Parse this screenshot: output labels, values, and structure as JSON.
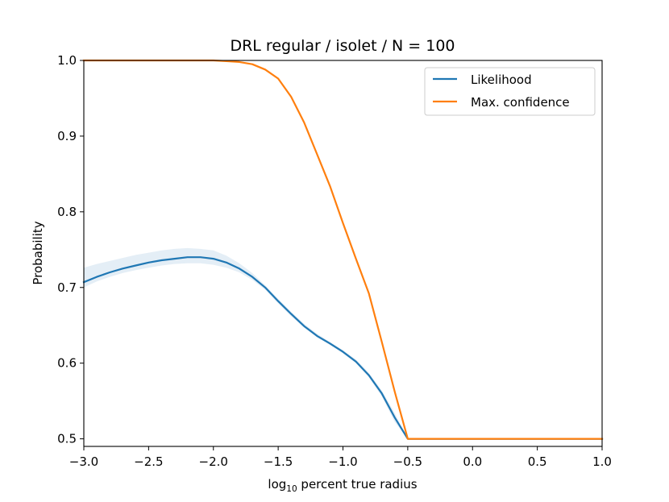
{
  "chart_data": {
    "type": "line",
    "title": "DRL regular / isolet / N = 100",
    "xlabel_main": "log",
    "xlabel_sub": "10",
    "xlabel_rest": " percent true radius",
    "ylabel": "Probability",
    "xlim": [
      -3.0,
      1.0
    ],
    "ylim": [
      0.49,
      1.0
    ],
    "xticks": [
      -3.0,
      -2.5,
      -2.0,
      -1.5,
      -1.0,
      -0.5,
      0.0,
      0.5,
      1.0
    ],
    "xtick_labels": [
      "−3.0",
      "−2.5",
      "−2.0",
      "−1.5",
      "−1.0",
      "−0.5",
      "0.0",
      "0.5",
      "1.0"
    ],
    "yticks": [
      0.5,
      0.6,
      0.7,
      0.8,
      0.9,
      1.0
    ],
    "ytick_labels": [
      "0.5",
      "0.6",
      "0.7",
      "0.8",
      "0.9",
      "1.0"
    ],
    "legend_position": "top-right",
    "series": [
      {
        "name": "Likelihood",
        "color": "#1f77b4",
        "band_color": "#1f77b4",
        "x": [
          -3.0,
          -2.9,
          -2.8,
          -2.7,
          -2.6,
          -2.5,
          -2.4,
          -2.3,
          -2.2,
          -2.1,
          -2.0,
          -1.9,
          -1.8,
          -1.7,
          -1.6,
          -1.5,
          -1.4,
          -1.3,
          -1.2,
          -1.1,
          -1.0,
          -0.9,
          -0.8,
          -0.7,
          -0.6,
          -0.5,
          0.0,
          0.5,
          1.0
        ],
        "values": [
          0.707,
          0.714,
          0.72,
          0.725,
          0.729,
          0.733,
          0.736,
          0.738,
          0.74,
          0.74,
          0.738,
          0.733,
          0.725,
          0.714,
          0.7,
          0.682,
          0.665,
          0.649,
          0.636,
          0.626,
          0.615,
          0.602,
          0.584,
          0.56,
          0.528,
          0.5,
          0.5,
          0.5,
          0.5
        ],
        "lower": [
          0.7,
          0.708,
          0.714,
          0.719,
          0.723,
          0.726,
          0.729,
          0.731,
          0.732,
          0.732,
          0.73,
          0.726,
          0.72,
          0.71,
          0.697,
          0.679,
          0.662,
          0.647,
          0.634,
          0.624,
          0.613,
          0.6,
          0.581,
          0.556,
          0.522,
          0.5,
          0.5,
          0.5,
          0.5
        ],
        "upper": [
          0.726,
          0.731,
          0.735,
          0.739,
          0.743,
          0.746,
          0.749,
          0.751,
          0.752,
          0.751,
          0.749,
          0.742,
          0.732,
          0.719,
          0.703,
          0.685,
          0.668,
          0.652,
          0.639,
          0.628,
          0.617,
          0.605,
          0.587,
          0.564,
          0.534,
          0.5,
          0.5,
          0.5,
          0.5
        ]
      },
      {
        "name": "Max. confidence",
        "color": "#ff7f0e",
        "band_color": "#ff7f0e",
        "x": [
          -3.0,
          -2.5,
          -2.0,
          -1.9,
          -1.8,
          -1.7,
          -1.6,
          -1.5,
          -1.4,
          -1.3,
          -1.2,
          -1.1,
          -1.0,
          -0.9,
          -0.8,
          -0.7,
          -0.6,
          -0.5,
          0.0,
          0.5,
          1.0
        ],
        "values": [
          1.0,
          1.0,
          1.0,
          0.999,
          0.998,
          0.995,
          0.988,
          0.976,
          0.952,
          0.918,
          0.876,
          0.834,
          0.785,
          0.738,
          0.692,
          0.628,
          0.562,
          0.5,
          0.5,
          0.5,
          0.5
        ],
        "lower": [
          1.0,
          1.0,
          1.0,
          0.999,
          0.998,
          0.995,
          0.987,
          0.975,
          0.951,
          0.917,
          0.875,
          0.832,
          0.783,
          0.736,
          0.69,
          0.626,
          0.56,
          0.5,
          0.5,
          0.5,
          0.5
        ],
        "upper": [
          1.0,
          1.0,
          1.0,
          0.999,
          0.998,
          0.996,
          0.989,
          0.977,
          0.953,
          0.919,
          0.877,
          0.836,
          0.787,
          0.74,
          0.694,
          0.63,
          0.564,
          0.5,
          0.5,
          0.5,
          0.5
        ]
      }
    ]
  }
}
